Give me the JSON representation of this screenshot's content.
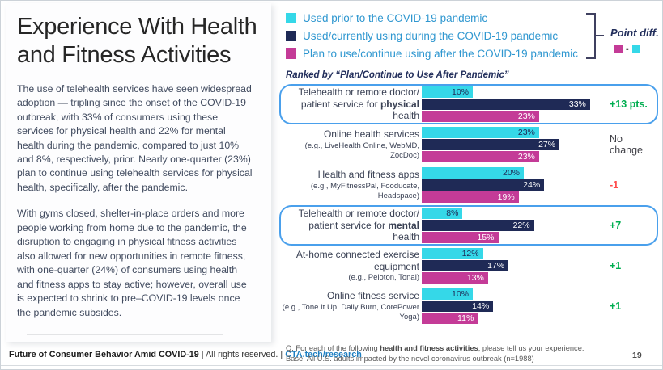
{
  "left_panel": {
    "title": "Experience With Health and Fitness Activities",
    "paragraph1": "The use of telehealth services have seen widespread adoption — tripling since the onset of the COVID-19 outbreak, with 33% of consumers using these services for physical health and 22% for mental health during the pandemic, compared to just 10% and 8%, respectively, prior. Nearly one-quarter (23%) plan to continue using telehealth services for physical health, specifically, after the pandemic.",
    "paragraph2": "With gyms closed, shelter-in-place orders and more people working from home due to the pandemic, the disruption to engaging in physical fitness activities also allowed for new opportunities in remote fitness, with one-quarter (24%) of consumers using health and fitness apps to stay active; however, overall use is expected to shrink to pre–COVID-19 levels once the pandemic subsides."
  },
  "legend": {
    "point_diff_label": "Point diff.",
    "minus": "-",
    "ranked_by": "Ranked by “Plan/Continue to Use After Pandemic”"
  },
  "chart_data": {
    "type": "bar",
    "orientation": "horizontal",
    "unit": "%",
    "xlim": [
      0,
      35
    ],
    "legend_position": "top",
    "series": [
      {
        "name": "Used prior to the COVID-19 pandemic",
        "color": "#35d8e8"
      },
      {
        "name": "Used/currently using during the COVID-19 pandemic",
        "color": "#1f2a56"
      },
      {
        "name": "Plan to use/continue using after the COVID-19 pandemic",
        "color": "#c43b97"
      }
    ],
    "categories": [
      "Telehealth or remote doctor/patient service for physical health",
      "Online health services",
      "Health and fitness apps",
      "Telehealth or remote doctor/patient service for mental health",
      "At-home connected exercise equipment",
      "Online fitness service"
    ],
    "rows": [
      {
        "title_line1": "Telehealth or remote doctor/",
        "title_pre": "patient service for ",
        "title_bold": "physical",
        "title_post": " health",
        "sub": "",
        "values": [
          10,
          33,
          23
        ],
        "diff": "+13 pts.",
        "diff_color": "#00ae50",
        "highlighted": true
      },
      {
        "title": "Online health services",
        "sub": "(e.g., LiveHealth Online, WebMD, ZocDoc)",
        "values": [
          23,
          27,
          23
        ],
        "diff": "No change",
        "diff_color": "#3f3f46",
        "highlighted": false
      },
      {
        "title": "Health and fitness apps",
        "sub": "(e.g., MyFitnessPal, Fooducate, Headspace)",
        "values": [
          20,
          24,
          19
        ],
        "diff": "-1",
        "diff_color": "#ff4b4b",
        "highlighted": false
      },
      {
        "title_line1": "Telehealth or remote doctor/",
        "title_pre": "patient service for ",
        "title_bold": "mental",
        "title_post": " health",
        "sub": "",
        "values": [
          8,
          22,
          15
        ],
        "diff": "+7",
        "diff_color": "#00ae50",
        "highlighted": true
      },
      {
        "title": "At-home connected exercise equipment",
        "sub": "(e.g., Peloton, Tonal)",
        "values": [
          12,
          17,
          13
        ],
        "diff": "+1",
        "diff_color": "#00ae50",
        "highlighted": false
      },
      {
        "title": "Online fitness service",
        "sub": "(e.g., Tone It Up, Daily Burn, CorePower Yoga)",
        "values": [
          10,
          14,
          11
        ],
        "diff": "+1",
        "diff_color": "#00ae50",
        "highlighted": false
      }
    ]
  },
  "footer": {
    "left_bold": "Future of Consumer Behavior Amid COVID-19",
    "left_mid": " | All rights reserved. | ",
    "left_link": "CTA.tech/research",
    "q_pre": "Q. For each of the following ",
    "q_bold": "health and fitness activities",
    "q_post": ", please tell us your experience.",
    "base_line": "Base: All U.S. adults impacted by the novel coronavirus outbreak (n=1988)",
    "page_number": "19"
  }
}
